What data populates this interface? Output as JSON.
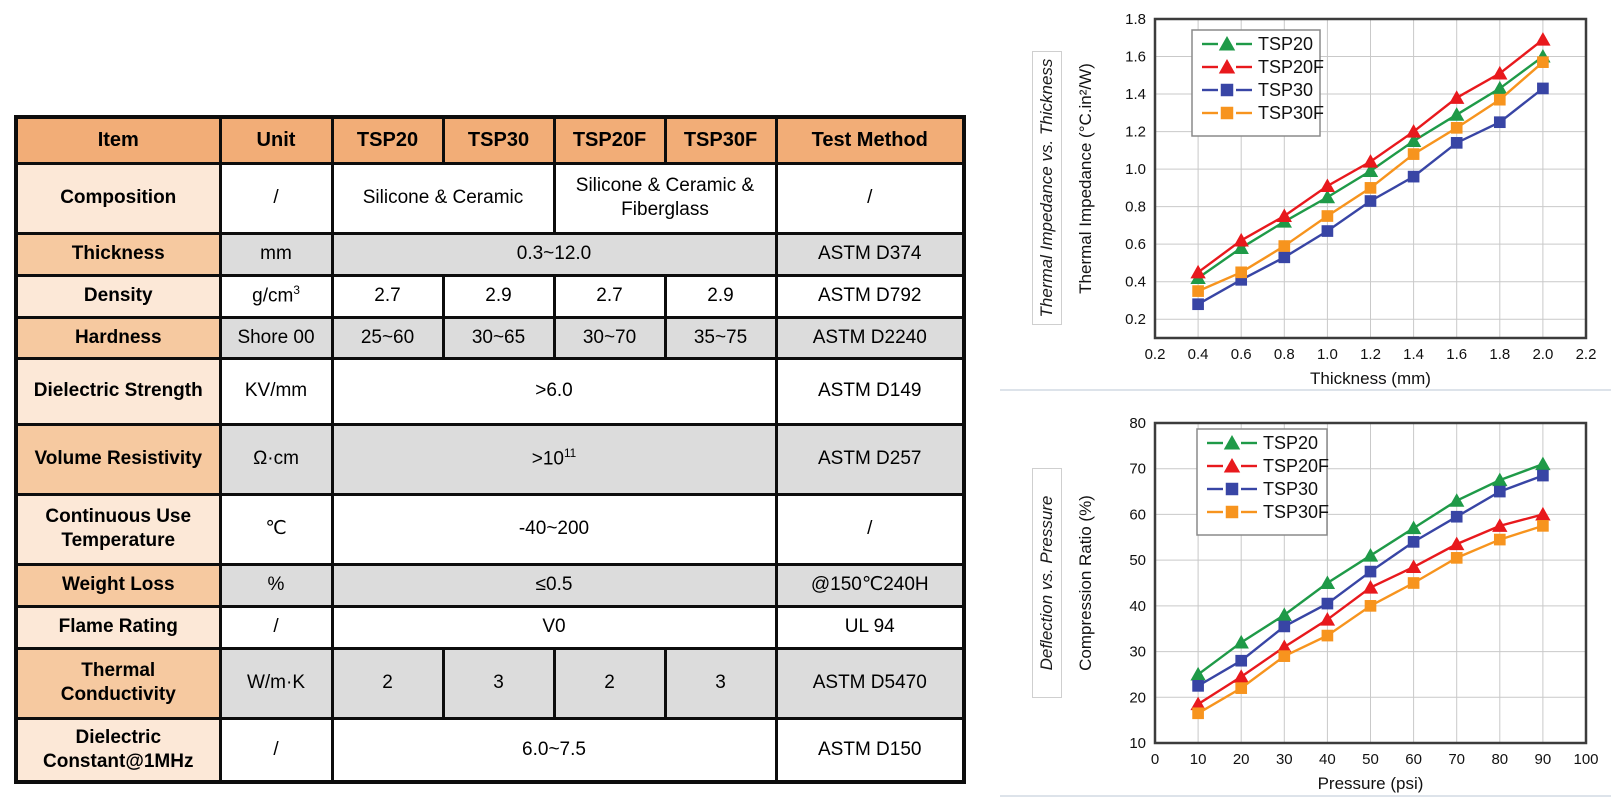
{
  "table": {
    "headers": [
      "Item",
      "Unit",
      "TSP20",
      "TSP30",
      "TSP20F",
      "TSP30F",
      "Test Method"
    ],
    "rows": [
      {
        "item": "Composition",
        "unit": {
          "text": "/"
        },
        "label_shade": "light",
        "cells_bg": "white",
        "values": [
          {
            "text": "Silicone & Ceramic",
            "span": 2
          },
          {
            "text": "Silicone & Ceramic & Fiberglass",
            "span": 2
          }
        ],
        "test": "/"
      },
      {
        "item": "Thickness",
        "unit": {
          "text": "mm"
        },
        "label_shade": "mid",
        "cells_bg": "gray",
        "values": [
          {
            "text": "0.3~12.0",
            "span": 4
          }
        ],
        "test": "ASTM D374"
      },
      {
        "item": "Density",
        "unit": {
          "text": "g/cm",
          "sup": "3"
        },
        "label_shade": "light",
        "cells_bg": "white",
        "values": [
          {
            "text": "2.7"
          },
          {
            "text": "2.9"
          },
          {
            "text": "2.7"
          },
          {
            "text": "2.9"
          }
        ],
        "test": "ASTM D792"
      },
      {
        "item": "Hardness",
        "unit": {
          "text": "Shore 00"
        },
        "label_shade": "mid",
        "cells_bg": "gray",
        "values": [
          {
            "text": "25~60"
          },
          {
            "text": "30~65"
          },
          {
            "text": "30~70"
          },
          {
            "text": "35~75"
          }
        ],
        "test": "ASTM D2240"
      },
      {
        "item": "Dielectric Strength",
        "unit": {
          "text": "KV/mm"
        },
        "label_shade": "light",
        "cells_bg": "white",
        "values": [
          {
            "text": ">6.0",
            "span": 4
          }
        ],
        "test": "ASTM D149"
      },
      {
        "item": "Volume Resistivity",
        "unit": {
          "text": "Ω·cm"
        },
        "label_shade": "mid",
        "cells_bg": "gray",
        "values": [
          {
            "text": ">10",
            "sup": "11",
            "span": 4
          }
        ],
        "test": "ASTM D257"
      },
      {
        "item": "Continuous Use Temperature",
        "unit": {
          "text": "℃"
        },
        "label_shade": "light",
        "cells_bg": "white",
        "values": [
          {
            "text": "-40~200",
            "span": 4
          }
        ],
        "test": "/"
      },
      {
        "item": "Weight Loss",
        "unit": {
          "text": "%"
        },
        "label_shade": "mid",
        "cells_bg": "gray",
        "values": [
          {
            "text": "≤0.5",
            "span": 4
          }
        ],
        "test": "@150℃240H"
      },
      {
        "item": "Flame Rating",
        "unit": {
          "text": "/"
        },
        "label_shade": "light",
        "cells_bg": "white",
        "values": [
          {
            "text": "V0",
            "span": 4
          }
        ],
        "test": "UL 94"
      },
      {
        "item": "Thermal Conductivity",
        "unit": {
          "text": "W/m·K"
        },
        "label_shade": "mid",
        "cells_bg": "gray",
        "values": [
          {
            "text": "2"
          },
          {
            "text": "3"
          },
          {
            "text": "2"
          },
          {
            "text": "3"
          }
        ],
        "test": "ASTM D5470"
      },
      {
        "item": "Dielectric Constant@1MHz",
        "unit": {
          "text": "/"
        },
        "label_shade": "light",
        "cells_bg": "white",
        "values": [
          {
            "text": "6.0~7.5",
            "span": 4
          }
        ],
        "test": "ASTM D150"
      }
    ]
  },
  "colors": {
    "header_orange": "#f2ad77",
    "label_light": "#fce8d7",
    "label_mid": "#f6c9a0",
    "cell_gray": "#dcdcdc",
    "series_green": "#1f9a48",
    "series_red": "#e8191d",
    "series_blue": "#3845a5",
    "series_orange": "#f7941e",
    "grid": "#c9c9c9",
    "plot_border": "#3c3c3c"
  },
  "chart_data": [
    {
      "type": "line",
      "title": "Thermal Impedance vs. Thickness",
      "xlabel": "Thickness (mm)",
      "ylabel": "Thermal Impedance (°C.in²/W)",
      "x": [
        0.4,
        0.6,
        0.8,
        1.0,
        1.2,
        1.4,
        1.6,
        1.8,
        2.0
      ],
      "xlim": [
        0.2,
        2.2
      ],
      "ylim": [
        0.1,
        1.8
      ],
      "xticks": [
        0.2,
        0.4,
        0.6,
        0.8,
        1.0,
        1.2,
        1.4,
        1.6,
        1.8,
        2.0,
        2.2
      ],
      "yticks": [
        0.2,
        0.4,
        0.6,
        0.8,
        1.0,
        1.2,
        1.4,
        1.6,
        1.8
      ],
      "tick_decimals": {
        "x": 1,
        "y": 1
      },
      "grid": true,
      "legend_position": "top-left",
      "series": [
        {
          "name": "TSP20",
          "color": "#1f9a48",
          "marker": "triangle",
          "values": [
            0.42,
            0.58,
            0.72,
            0.85,
            0.99,
            1.15,
            1.29,
            1.43,
            1.6
          ]
        },
        {
          "name": "TSP20F",
          "color": "#e8191d",
          "marker": "triangle",
          "values": [
            0.45,
            0.62,
            0.75,
            0.91,
            1.04,
            1.2,
            1.38,
            1.51,
            1.69
          ]
        },
        {
          "name": "TSP30",
          "color": "#3845a5",
          "marker": "square",
          "values": [
            0.28,
            0.41,
            0.53,
            0.67,
            0.83,
            0.96,
            1.14,
            1.25,
            1.43
          ]
        },
        {
          "name": "TSP30F",
          "color": "#f7941e",
          "marker": "square",
          "values": [
            0.35,
            0.45,
            0.59,
            0.75,
            0.9,
            1.08,
            1.22,
            1.37,
            1.57
          ]
        }
      ]
    },
    {
      "type": "line",
      "title": "Deflection vs. Pressure",
      "xlabel": "Pressure (psi)",
      "ylabel": "Compression Ratio (%)",
      "x": [
        10,
        20,
        30,
        40,
        50,
        60,
        70,
        80,
        90
      ],
      "xlim": [
        0,
        100
      ],
      "ylim": [
        10,
        80
      ],
      "xticks": [
        0,
        10,
        20,
        30,
        40,
        50,
        60,
        70,
        80,
        90,
        100
      ],
      "yticks": [
        10,
        20,
        30,
        40,
        50,
        60,
        70,
        80
      ],
      "tick_decimals": {
        "x": 0,
        "y": 0
      },
      "grid": true,
      "legend_position": "top-left",
      "series": [
        {
          "name": "TSP20",
          "color": "#1f9a48",
          "marker": "triangle",
          "values": [
            25,
            32,
            38,
            45,
            51,
            57,
            63,
            67.5,
            71
          ]
        },
        {
          "name": "TSP20F",
          "color": "#e8191d",
          "marker": "triangle",
          "values": [
            18.5,
            24.5,
            31,
            37,
            44,
            48.5,
            53.5,
            57.5,
            60
          ]
        },
        {
          "name": "TSP30",
          "color": "#3845a5",
          "marker": "square",
          "values": [
            22.5,
            28,
            35.5,
            40.5,
            47.5,
            54,
            59.5,
            65,
            68.5
          ]
        },
        {
          "name": "TSP30F",
          "color": "#f7941e",
          "marker": "square",
          "values": [
            16.5,
            22,
            29,
            33.5,
            40,
            45,
            50.5,
            54.5,
            57.5
          ]
        }
      ]
    }
  ]
}
